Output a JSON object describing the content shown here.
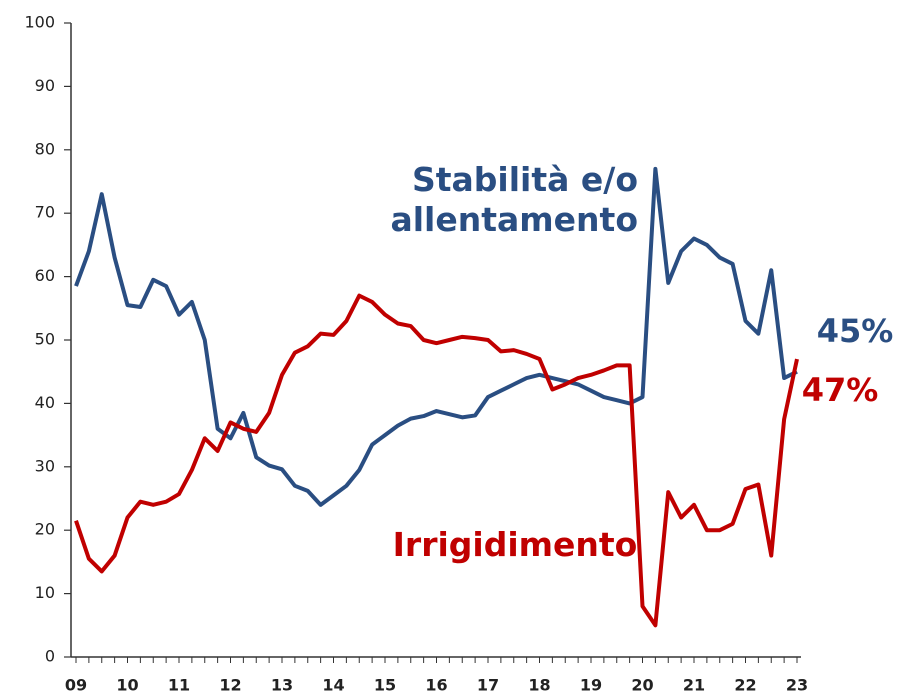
{
  "chart_data": {
    "type": "line",
    "categories": [
      "09",
      null,
      null,
      null,
      "10",
      null,
      null,
      null,
      "11",
      null,
      null,
      null,
      "12",
      null,
      null,
      null,
      "13",
      null,
      null,
      null,
      "14",
      null,
      null,
      null,
      "15",
      null,
      null,
      null,
      "16",
      null,
      null,
      null,
      "17",
      null,
      null,
      null,
      "18",
      null,
      null,
      null,
      "19",
      null,
      null,
      null,
      "20",
      null,
      null,
      null,
      "21",
      null,
      null,
      null,
      "22",
      null,
      null,
      null,
      "23"
    ],
    "series": [
      {
        "name": "Stabilità e/o allentamento",
        "color": "#2a4e82",
        "values": [
          58.5,
          64,
          73,
          63,
          55.5,
          55.2,
          59.5,
          58.5,
          54,
          56,
          50,
          36,
          34.5,
          38.5,
          31.5,
          30.2,
          29.6,
          27,
          26.2,
          24,
          25.5,
          27,
          29.5,
          33.5,
          35,
          36.5,
          37.6,
          38,
          38.8,
          38.3,
          37.8,
          38.1,
          41,
          42,
          43,
          44,
          44.5,
          44,
          43.5,
          43,
          42,
          41,
          40.5,
          40,
          41,
          77,
          59,
          64,
          66,
          65,
          63,
          62,
          53,
          51,
          61,
          44,
          45
        ],
        "value_labels": [
          null,
          null,
          null,
          null,
          null,
          null,
          null,
          null,
          null,
          null,
          null,
          null,
          null,
          null,
          null,
          null,
          null,
          null,
          null,
          null,
          null,
          null,
          null,
          null,
          null,
          null,
          null,
          null,
          null,
          null,
          null,
          null,
          null,
          null,
          null,
          null,
          null,
          null,
          null,
          null,
          null,
          null,
          null,
          null,
          null,
          null,
          null,
          null,
          null,
          null,
          null,
          null,
          null,
          null,
          null,
          null,
          "45%"
        ]
      },
      {
        "name": "Irrigidimento",
        "color": "#c00000",
        "values": [
          21.5,
          15.5,
          13.5,
          16,
          22,
          24.5,
          24,
          24.5,
          25.7,
          29.5,
          34.5,
          32.5,
          37,
          36,
          35.5,
          38.5,
          44.5,
          48,
          49,
          51,
          50.8,
          53,
          57,
          56,
          54,
          52.6,
          52.2,
          50,
          49.5,
          50,
          50.5,
          50.3,
          50,
          48.2,
          48.4,
          47.8,
          47,
          42.2,
          43,
          44,
          44.5,
          45.2,
          46,
          46,
          8,
          5,
          26,
          22,
          24,
          20,
          20,
          21,
          26.5,
          27.2,
          16,
          37.5,
          47
        ],
        "value_labels": [
          null,
          null,
          null,
          null,
          null,
          null,
          null,
          null,
          null,
          null,
          null,
          null,
          null,
          null,
          null,
          null,
          null,
          null,
          null,
          null,
          null,
          null,
          null,
          null,
          null,
          null,
          null,
          null,
          null,
          null,
          null,
          null,
          null,
          null,
          null,
          null,
          null,
          null,
          null,
          null,
          null,
          null,
          null,
          null,
          null,
          null,
          null,
          null,
          null,
          null,
          null,
          null,
          null,
          null,
          null,
          null,
          "47%"
        ]
      }
    ],
    "ylim": [
      0,
      100
    ],
    "yticks": [
      0,
      10,
      20,
      30,
      40,
      50,
      60,
      70,
      80,
      90,
      100
    ],
    "grid": false
  }
}
